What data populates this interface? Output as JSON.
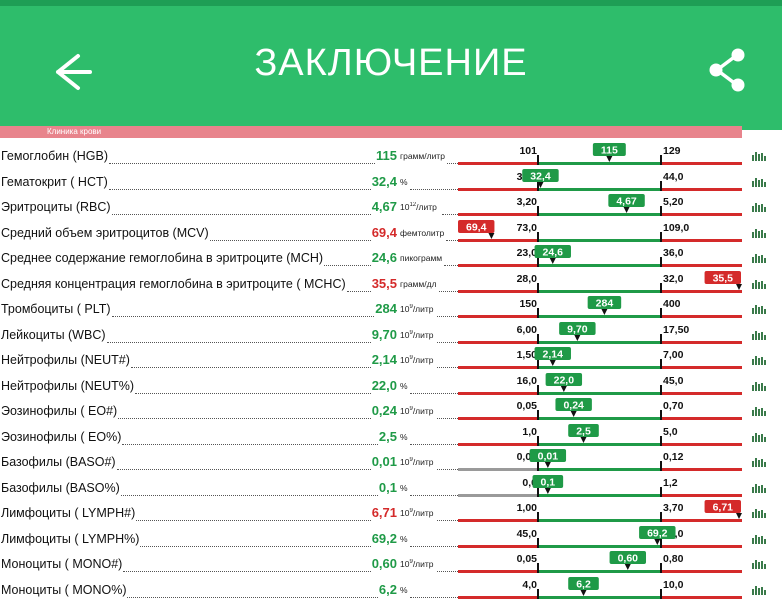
{
  "header": {
    "title": "ЗАКЛЮЧЕНИЕ",
    "back_icon": "arrow-left-icon",
    "share_icon": "share-icon"
  },
  "section": {
    "label": "Клиника крови"
  },
  "colors": {
    "green": "#1f9a47",
    "red": "#d42a2a",
    "gray": "#9a9a9a",
    "header": "#2ebd6b"
  },
  "rows": [
    {
      "label": "Гемоглобин (HGB)",
      "value": "115",
      "unit": "грамм/литр",
      "low": "101",
      "high": "129",
      "status": "normal",
      "marker": "115",
      "pos": 0.58
    },
    {
      "label": "Гематокрит ( HCT)",
      "value": "32,4",
      "unit": "%",
      "low": "32,0",
      "high": "44,0",
      "status": "normal",
      "marker": "32,4",
      "pos": 0.02
    },
    {
      "label": "Эритроциты (RBC)",
      "value": "4,67",
      "unit": "10",
      "unit_sup": "12",
      "unit_suffix": "/литр",
      "low": "3,20",
      "high": "5,20",
      "status": "normal",
      "marker": "4,67",
      "pos": 0.72
    },
    {
      "label": "Средний объем эритроцитов (MCV)",
      "value": "69,4",
      "unit": "фемтолитр",
      "low": "73,0",
      "high": "109,0",
      "status": "low",
      "marker": "69,4",
      "pos": -1
    },
    {
      "label": "Среднее содержание гемоглобина в эритроците (MCH)",
      "value": "24,6",
      "unit": "пикограмм",
      "low": "23,0",
      "high": "36,0",
      "status": "normal",
      "marker": "24,6",
      "pos": 0.12
    },
    {
      "label": "Средняя концентрация гемоглобина в эритроците ( MCHC)",
      "value": "35,5",
      "unit": "грамм/дл",
      "low": "28,0",
      "high": "32,0",
      "status": "high",
      "marker": "35,5",
      "pos": 2
    },
    {
      "label": "Тромбоциты ( PLT)",
      "value": "284",
      "unit": "10",
      "unit_sup": "9",
      "unit_suffix": "/литр",
      "low": "150",
      "high": "400",
      "status": "normal",
      "marker": "284",
      "pos": 0.54
    },
    {
      "label": "Лейкоциты (WBC)",
      "value": "9,70",
      "unit": "10",
      "unit_sup": "9",
      "unit_suffix": "/литр",
      "low": "6,00",
      "high": "17,50",
      "status": "normal",
      "marker": "9,70",
      "pos": 0.32
    },
    {
      "label": "Нейтрофилы (NEUT#)",
      "value": "2,14",
      "unit": "10",
      "unit_sup": "9",
      "unit_suffix": "/литр",
      "low": "1,50",
      "high": "7,00",
      "status": "normal",
      "marker": "2,14",
      "pos": 0.12
    },
    {
      "label": "Нейтрофилы (NEUT%)",
      "value": "22,0",
      "unit": "%",
      "low": "16,0",
      "high": "45,0",
      "status": "normal",
      "marker": "22,0",
      "pos": 0.21
    },
    {
      "label": "Эозинофилы ( EO#)",
      "value": "0,24",
      "unit": "10",
      "unit_sup": "9",
      "unit_suffix": "/литр",
      "low": "0,05",
      "high": "0,70",
      "status": "normal",
      "marker": "0,24",
      "pos": 0.29
    },
    {
      "label": "Эозинофилы ( EO%)",
      "value": "2,5",
      "unit": "%",
      "low": "1,0",
      "high": "5,0",
      "status": "normal",
      "marker": "2,5",
      "pos": 0.37
    },
    {
      "label": "Базофилы (BASO#)",
      "value": "0,01",
      "unit": "10",
      "unit_sup": "9",
      "unit_suffix": "/литр",
      "low": "0,00",
      "high": "0,12",
      "status": "normal",
      "marker": "0,01",
      "pos": 0.08,
      "gray_left": true
    },
    {
      "label": "Базофилы (BASO%)",
      "value": "0,1",
      "unit": "%",
      "low": "0,0",
      "high": "1,2",
      "status": "normal",
      "marker": "0,1",
      "pos": 0.08,
      "gray_left": true
    },
    {
      "label": "Лимфоциты ( LYMPH#)",
      "value": "6,71",
      "unit": "10",
      "unit_sup": "9",
      "unit_suffix": "/литр",
      "low": "1,00",
      "high": "3,70",
      "status": "high",
      "marker": "6,71",
      "pos": 2
    },
    {
      "label": "Лимфоциты ( LYMPH%)",
      "value": "69,2",
      "unit": "%",
      "low": "45,0",
      "high": "70,0",
      "status": "normal",
      "marker": "69,2",
      "pos": 0.97
    },
    {
      "label": "Моноциты ( MONO#)",
      "value": "0,60",
      "unit": "10",
      "unit_sup": "9",
      "unit_suffix": "/литр",
      "low": "0,05",
      "high": "0,80",
      "status": "normal",
      "marker": "0,60",
      "pos": 0.73
    },
    {
      "label": "Моноциты ( MONO%)",
      "value": "6,2",
      "unit": "%",
      "low": "4,0",
      "high": "10,0",
      "status": "normal",
      "marker": "6,2",
      "pos": 0.37
    }
  ]
}
